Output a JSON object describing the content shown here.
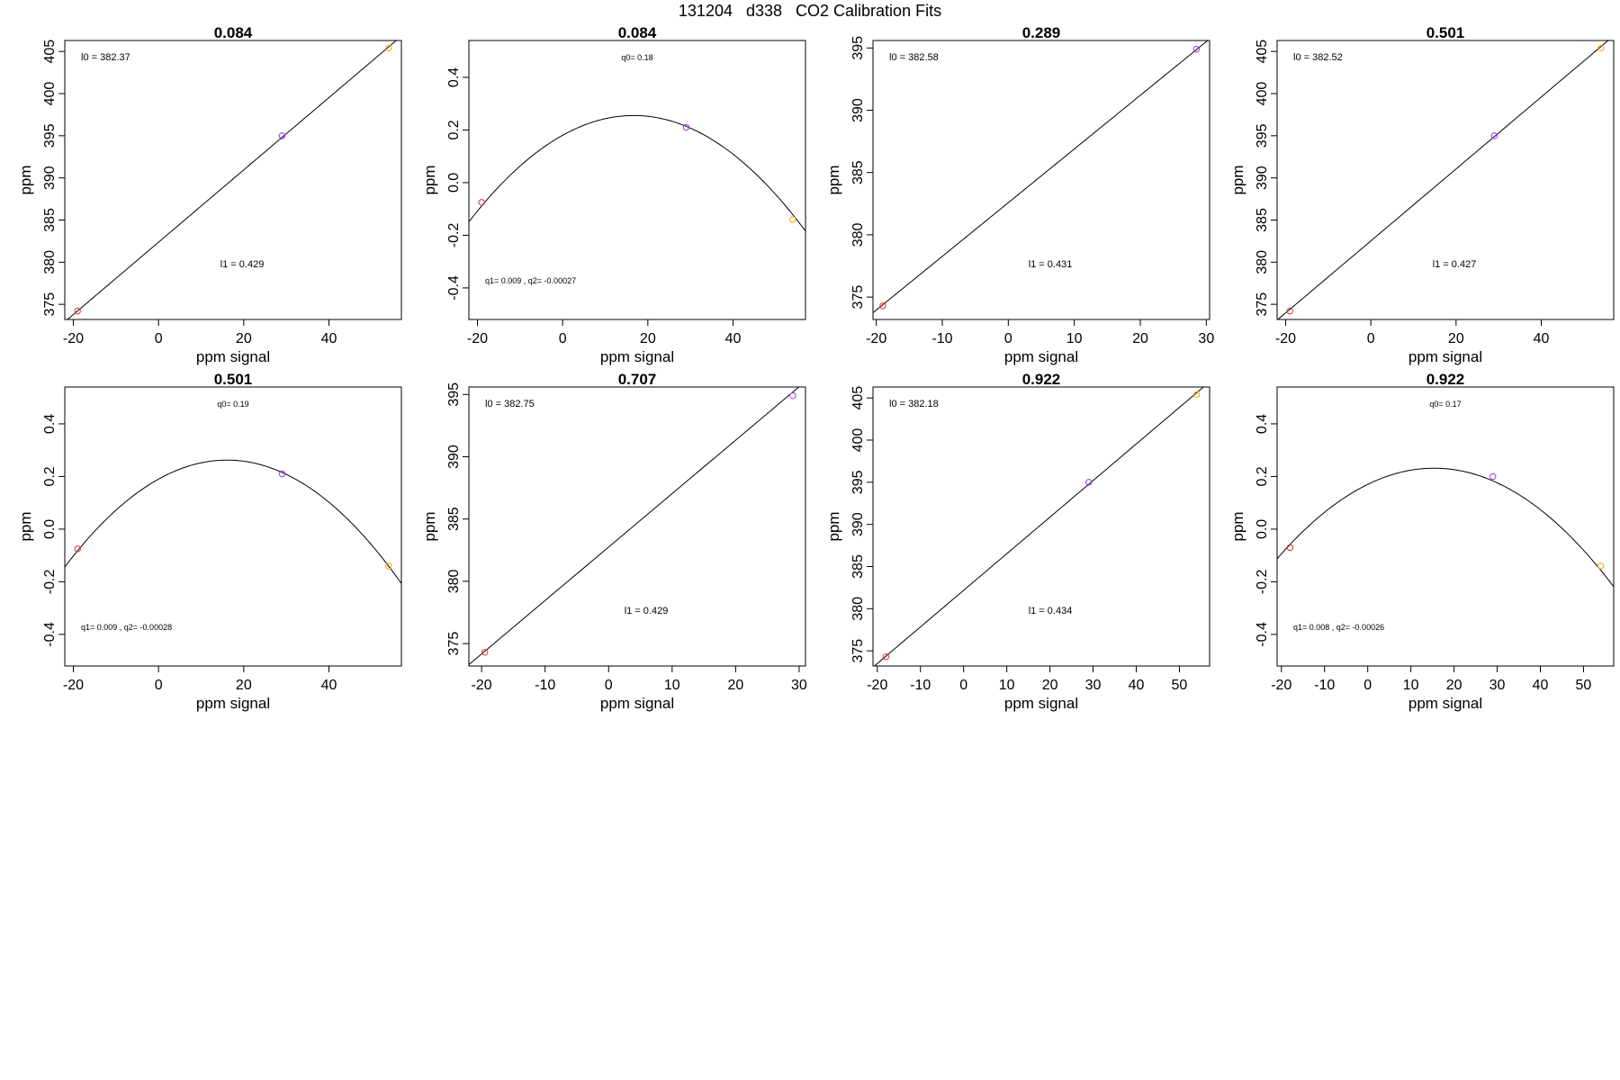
{
  "page_title": "131204   d338   CO2 Calibration Fits",
  "chart_data": [
    {
      "type": "scatter",
      "title": "0.084",
      "xlabel": "ppm signal",
      "ylabel": "ppm",
      "xlim": [
        -22,
        57
      ],
      "ylim": [
        373.2,
        406.3
      ],
      "xticks": [
        "-20",
        "0",
        "20",
        "40"
      ],
      "yticks": [
        "375",
        "380",
        "385",
        "390",
        "395",
        "400",
        "405"
      ],
      "points": [
        {
          "x": -19,
          "y": 374.2
        },
        {
          "x": 29,
          "y": 395
        },
        {
          "x": 54,
          "y": 405.4
        }
      ],
      "fit": {
        "kind": "linear",
        "a": 382.37,
        "b": 0.429
      },
      "annotations": [
        {
          "text": "l0 =  382.37",
          "pos": "top-left"
        },
        {
          "text": "l1 =  0.429",
          "pos": "lower-center"
        }
      ]
    },
    {
      "type": "scatter",
      "title": "0.084",
      "xlabel": "ppm signal",
      "ylabel": "ppm",
      "xlim": [
        -22,
        57
      ],
      "ylim": [
        -0.52,
        0.54
      ],
      "xticks": [
        "-20",
        "0",
        "20",
        "40"
      ],
      "yticks": [
        "-0.4",
        "-0.2",
        "0.0",
        "0.2",
        "0.4"
      ],
      "points": [
        {
          "x": -19,
          "y": -0.075
        },
        {
          "x": 29,
          "y": 0.21
        },
        {
          "x": 54,
          "y": -0.14
        }
      ],
      "fit": {
        "kind": "quadratic",
        "a": 0.18,
        "b": 0.009,
        "c": -0.00027
      },
      "annotations": [
        {
          "text": "q0= 0.18",
          "pos": "top-center"
        },
        {
          "text": "q1= 0.009 ,  q2= -0.00027",
          "pos": "bottom-left"
        }
      ]
    },
    {
      "type": "scatter",
      "title": "0.289",
      "xlabel": "ppm signal",
      "ylabel": "ppm",
      "xlim": [
        -20.5,
        30.5
      ],
      "ylim": [
        373.2,
        395.6
      ],
      "xticks": [
        "-20",
        "-10",
        "0",
        "10",
        "20",
        "30"
      ],
      "yticks": [
        "375",
        "380",
        "385",
        "390",
        "395"
      ],
      "points": [
        {
          "x": -19,
          "y": 374.3
        },
        {
          "x": 28.5,
          "y": 394.9
        }
      ],
      "fit": {
        "kind": "linear",
        "a": 382.58,
        "b": 0.431
      },
      "annotations": [
        {
          "text": "l0 =  382.58",
          "pos": "top-left"
        },
        {
          "text": "l1 =  0.431",
          "pos": "lower-center"
        }
      ]
    },
    {
      "type": "scatter",
      "title": "0.501",
      "xlabel": "ppm signal",
      "ylabel": "ppm",
      "xlim": [
        -22,
        57
      ],
      "ylim": [
        373.2,
        406.3
      ],
      "xticks": [
        "-20",
        "0",
        "20",
        "40"
      ],
      "yticks": [
        "375",
        "380",
        "385",
        "390",
        "395",
        "400",
        "405"
      ],
      "points": [
        {
          "x": -19,
          "y": 374.2
        },
        {
          "x": 29,
          "y": 395
        },
        {
          "x": 54,
          "y": 405.4
        }
      ],
      "fit": {
        "kind": "linear",
        "a": 382.52,
        "b": 0.427
      },
      "annotations": [
        {
          "text": "l0 =  382.52",
          "pos": "top-left"
        },
        {
          "text": "l1 =  0.427",
          "pos": "lower-center"
        }
      ]
    },
    {
      "type": "scatter",
      "title": "0.501",
      "xlabel": "ppm signal",
      "ylabel": "ppm",
      "xlim": [
        -22,
        57
      ],
      "ylim": [
        -0.52,
        0.54
      ],
      "xticks": [
        "-20",
        "0",
        "20",
        "40"
      ],
      "yticks": [
        "-0.4",
        "-0.2",
        "0.0",
        "0.2",
        "0.4"
      ],
      "points": [
        {
          "x": -19,
          "y": -0.075
        },
        {
          "x": 29,
          "y": 0.21
        },
        {
          "x": 54,
          "y": -0.14
        }
      ],
      "fit": {
        "kind": "quadratic",
        "a": 0.19,
        "b": 0.009,
        "c": -0.00028
      },
      "annotations": [
        {
          "text": "q0= 0.19",
          "pos": "top-center"
        },
        {
          "text": "q1= 0.009 ,  q2= -0.00028",
          "pos": "bottom-left"
        }
      ]
    },
    {
      "type": "scatter",
      "title": "0.707",
      "xlabel": "ppm signal",
      "ylabel": "ppm",
      "xlim": [
        -22,
        31
      ],
      "ylim": [
        373.2,
        395.6
      ],
      "xticks": [
        "-20",
        "-10",
        "0",
        "10",
        "20",
        "30"
      ],
      "yticks": [
        "375",
        "380",
        "385",
        "390",
        "395"
      ],
      "points": [
        {
          "x": -19.5,
          "y": 374.3
        },
        {
          "x": 29,
          "y": 394.9
        }
      ],
      "fit": {
        "kind": "linear",
        "a": 382.75,
        "b": 0.429
      },
      "annotations": [
        {
          "text": "l0 =  382.75",
          "pos": "top-left"
        },
        {
          "text": "l1 =  0.429",
          "pos": "lower-center"
        }
      ]
    },
    {
      "type": "scatter",
      "title": "0.922",
      "xlabel": "ppm signal",
      "ylabel": "ppm",
      "xlim": [
        -21,
        57
      ],
      "ylim": [
        373.2,
        406.3
      ],
      "xticks": [
        "-20",
        "-10",
        "0",
        "10",
        "20",
        "30",
        "40",
        "50"
      ],
      "yticks": [
        "375",
        "380",
        "385",
        "390",
        "395",
        "400",
        "405"
      ],
      "points": [
        {
          "x": -18,
          "y": 374.3
        },
        {
          "x": 29,
          "y": 395
        },
        {
          "x": 54,
          "y": 405.4
        }
      ],
      "fit": {
        "kind": "linear",
        "a": 382.18,
        "b": 0.434
      },
      "annotations": [
        {
          "text": "l0 =  382.18",
          "pos": "top-left"
        },
        {
          "text": "l1 =  0.434",
          "pos": "lower-center"
        }
      ]
    },
    {
      "type": "scatter",
      "title": "0.922",
      "xlabel": "ppm signal",
      "ylabel": "ppm",
      "xlim": [
        -21,
        57
      ],
      "ylim": [
        -0.52,
        0.54
      ],
      "xticks": [
        "-20",
        "-10",
        "0",
        "10",
        "20",
        "30",
        "40",
        "50"
      ],
      "yticks": [
        "-0.4",
        "-0.2",
        "0.0",
        "0.2",
        "0.4"
      ],
      "points": [
        {
          "x": -18,
          "y": -0.07
        },
        {
          "x": 29,
          "y": 0.2
        },
        {
          "x": 54,
          "y": -0.14
        }
      ],
      "fit": {
        "kind": "quadratic",
        "a": 0.17,
        "b": 0.008,
        "c": -0.00026
      },
      "annotations": [
        {
          "text": "q0= 0.17",
          "pos": "top-center"
        },
        {
          "text": "q1= 0.008 ,  q2= -0.00026",
          "pos": "bottom-left"
        }
      ]
    }
  ],
  "point_colors": [
    "#e8302e",
    "#9b30ff",
    "#ffa500"
  ],
  "fit_color": "#000000"
}
